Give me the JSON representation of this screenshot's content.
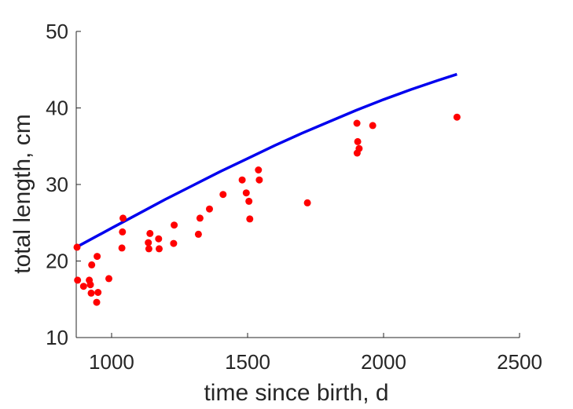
{
  "chart_data": {
    "type": "scatter",
    "xlabel": "time since birth, d",
    "ylabel": "total length, cm",
    "xlim": [
      870,
      2500
    ],
    "ylim": [
      10,
      50
    ],
    "xticks": [
      1000,
      1500,
      2000,
      2500
    ],
    "yticks": [
      10,
      20,
      30,
      40,
      50
    ],
    "grid": false,
    "series": [
      {
        "kind": "line",
        "color": "#0000ee",
        "x": [
          870,
          1000,
          1100,
          1200,
          1300,
          1400,
          1500,
          1600,
          1700,
          1800,
          1900,
          2000,
          2100,
          2200,
          2270
        ],
        "y": [
          21.8,
          24.3,
          26.2,
          28.1,
          29.9,
          31.7,
          33.4,
          35.1,
          36.7,
          38.2,
          39.7,
          41.1,
          42.4,
          43.6,
          44.4
        ]
      },
      {
        "kind": "scatter",
        "color": "#ff0000",
        "points": [
          [
            873,
            21.8
          ],
          [
            875,
            17.5
          ],
          [
            897,
            16.7
          ],
          [
            918,
            17.5
          ],
          [
            922,
            16.9
          ],
          [
            925,
            15.8
          ],
          [
            927,
            19.5
          ],
          [
            945,
            14.6
          ],
          [
            947,
            20.6
          ],
          [
            950,
            15.9
          ],
          [
            990,
            17.7
          ],
          [
            1038,
            21.7
          ],
          [
            1040,
            23.8
          ],
          [
            1042,
            25.6
          ],
          [
            1135,
            22.4
          ],
          [
            1137,
            21.6
          ],
          [
            1141,
            23.6
          ],
          [
            1173,
            22.9
          ],
          [
            1175,
            21.6
          ],
          [
            1228,
            22.3
          ],
          [
            1230,
            24.7
          ],
          [
            1319,
            23.5
          ],
          [
            1325,
            25.6
          ],
          [
            1360,
            26.8
          ],
          [
            1410,
            28.7
          ],
          [
            1480,
            30.6
          ],
          [
            1495,
            28.9
          ],
          [
            1505,
            27.8
          ],
          [
            1508,
            25.5
          ],
          [
            1540,
            31.9
          ],
          [
            1543,
            30.6
          ],
          [
            1720,
            27.6
          ],
          [
            1902,
            38.0
          ],
          [
            1903,
            34.1
          ],
          [
            1905,
            35.6
          ],
          [
            1910,
            34.7
          ],
          [
            1960,
            37.7
          ],
          [
            2270,
            38.8
          ]
        ]
      }
    ]
  }
}
